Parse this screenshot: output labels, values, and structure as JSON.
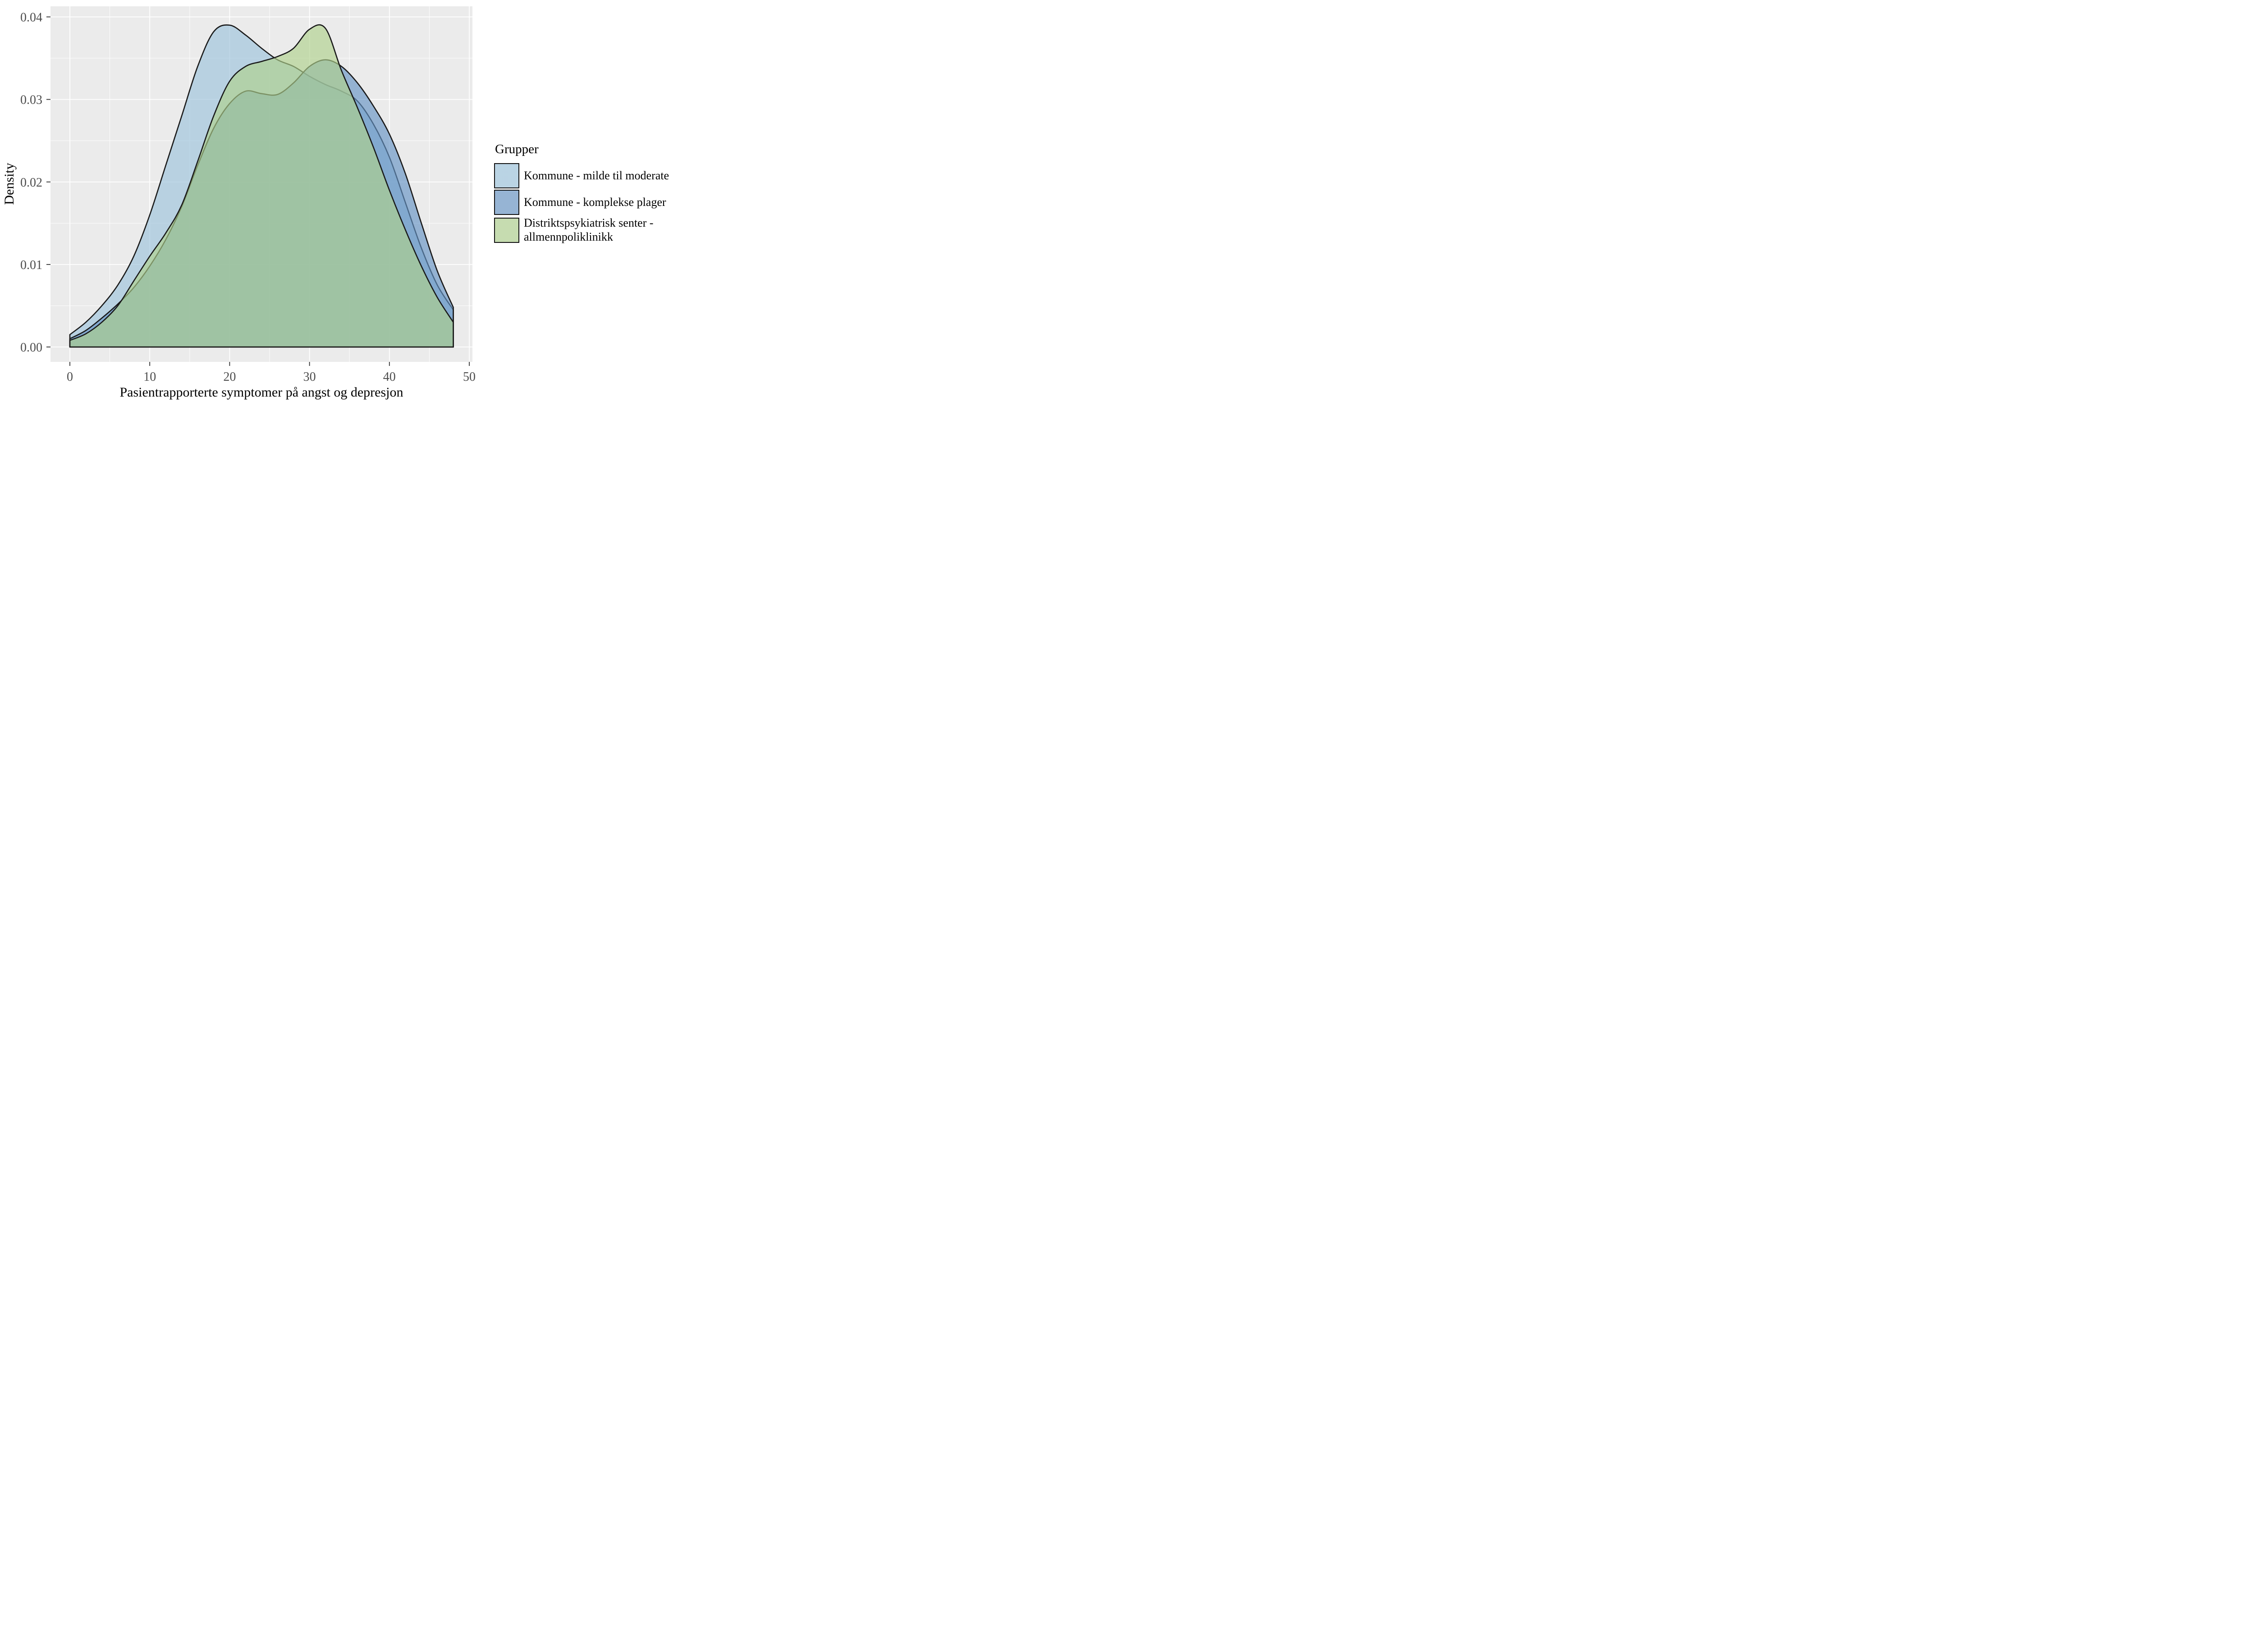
{
  "figure": {
    "xlabel": "Pasientrapporterte symptomer på angst og depresjon",
    "ylabel": "Density"
  },
  "legend": {
    "title": "Grupper",
    "entries": [
      {
        "label": "Kommune - milde til moderate",
        "fill": "#9CC3DC"
      },
      {
        "label": "Kommune - komplekse plager",
        "fill": "#6593C4"
      },
      {
        "label": "Distriktspsykiatrisk senter -\nallmennpoliklinikk",
        "fill": "#AFD18C"
      }
    ]
  },
  "chart_data": {
    "type": "area",
    "subtype": "overlapping-density-curves",
    "title": "",
    "xlabel": "Pasientrapporterte symptomer på angst og depresjon",
    "ylabel": "Density",
    "xlim": [
      -2.5,
      50.5
    ],
    "ylim": [
      -0.002,
      0.0413
    ],
    "x_ticks": [
      0,
      10,
      20,
      30,
      40,
      50
    ],
    "x_tick_labels": [
      "0",
      "10",
      "20",
      "30",
      "40",
      "50"
    ],
    "y_ticks": [
      0,
      0.01,
      0.02,
      0.03,
      0.04
    ],
    "y_tick_labels": [
      "0.00",
      "0.01",
      "0.02",
      "0.03",
      "0.04"
    ],
    "x_minor": [
      5,
      15,
      25,
      35,
      45
    ],
    "y_minor": [
      0.005,
      0.015,
      0.025,
      0.035
    ],
    "grid": true,
    "legend_position": "right",
    "panel_bg": "#EBEBEB",
    "grid_color": "#FFFFFF",
    "stroke_color": "#1A1A1A",
    "fill_alpha": 0.65,
    "x": [
      0,
      2,
      4,
      6,
      8,
      10,
      12,
      14,
      16,
      18,
      20,
      22,
      24,
      26,
      28,
      30,
      32,
      34,
      36,
      38,
      40,
      42,
      44,
      46,
      48
    ],
    "series": [
      {
        "name": "Kommune - milde til moderate",
        "color": "#9CC3DC",
        "values": [
          0.0015,
          0.003,
          0.005,
          0.0075,
          0.011,
          0.016,
          0.022,
          0.028,
          0.034,
          0.0382,
          0.039,
          0.0378,
          0.0362,
          0.0348,
          0.034,
          0.0328,
          0.0318,
          0.031,
          0.0298,
          0.027,
          0.023,
          0.0175,
          0.012,
          0.0075,
          0.0045
        ]
      },
      {
        "name": "Kommune - komplekse plager",
        "color": "#6593C4",
        "values": [
          0.001,
          0.002,
          0.0035,
          0.0052,
          0.0072,
          0.0098,
          0.013,
          0.017,
          0.022,
          0.0265,
          0.0295,
          0.031,
          0.0307,
          0.0306,
          0.032,
          0.034,
          0.0348,
          0.034,
          0.032,
          0.0292,
          0.0258,
          0.021,
          0.015,
          0.0092,
          0.0048
        ]
      },
      {
        "name": "Distriktspsykiatrisk senter - allmennpoliklinikk",
        "color": "#AFD18C",
        "values": [
          0.0008,
          0.0016,
          0.003,
          0.005,
          0.008,
          0.011,
          0.0138,
          0.0172,
          0.0225,
          0.028,
          0.0322,
          0.034,
          0.0346,
          0.0352,
          0.0362,
          0.0385,
          0.0386,
          0.0335,
          0.029,
          0.0242,
          0.019,
          0.0142,
          0.0098,
          0.006,
          0.003
        ]
      }
    ]
  }
}
